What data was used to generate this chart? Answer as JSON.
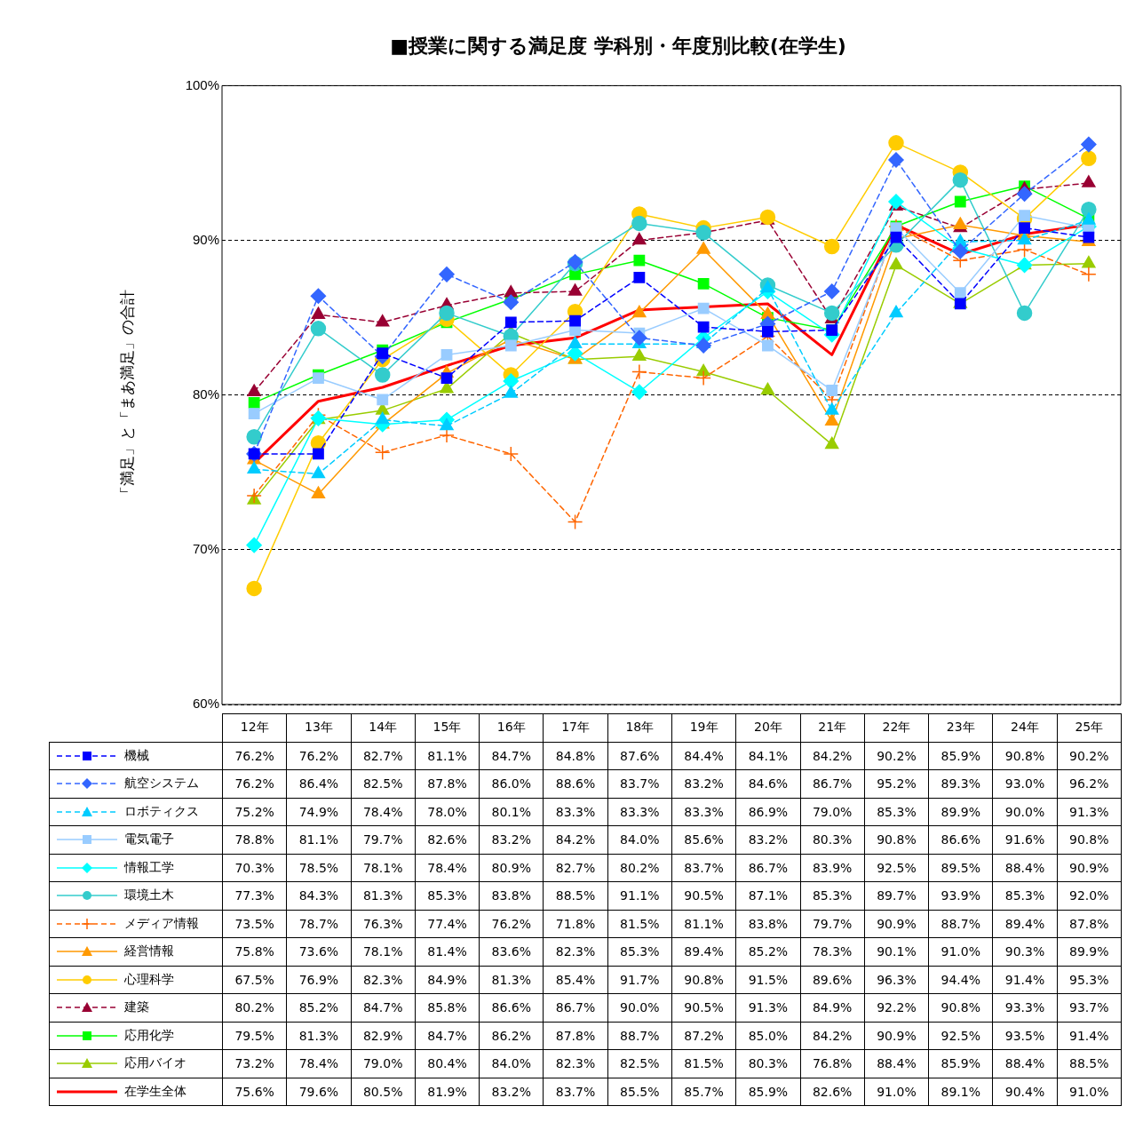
{
  "chart_data": {
    "type": "line",
    "title": "■授業に関する満足度 学科別・年度別比較(在学生)",
    "ylabel": "「満足」と「まあ満足」の合計",
    "categories": [
      "12年",
      "13年",
      "14年",
      "15年",
      "16年",
      "17年",
      "18年",
      "19年",
      "20年",
      "21年",
      "22年",
      "23年",
      "24年",
      "25年"
    ],
    "ylim": [
      60,
      100
    ],
    "yticks": [
      {
        "value": 60,
        "label": "60%"
      },
      {
        "value": 70,
        "label": "70%"
      },
      {
        "value": 80,
        "label": "80%"
      },
      {
        "value": 90,
        "label": "90%"
      },
      {
        "value": 100,
        "label": "100%"
      }
    ],
    "grid": "y",
    "legend": "bottom",
    "series": [
      {
        "name": "機械",
        "color": "#0000ff",
        "marker": "square",
        "line_style": "dashed",
        "values": [
          76.2,
          76.2,
          82.7,
          81.1,
          84.7,
          84.8,
          87.6,
          84.4,
          84.1,
          84.2,
          90.2,
          85.9,
          90.8,
          90.2
        ],
        "value_labels": [
          "76.2%",
          "76.2%",
          "82.7%",
          "81.1%",
          "84.7%",
          "84.8%",
          "87.6%",
          "84.4%",
          "84.1%",
          "84.2%",
          "90.2%",
          "85.9%",
          "90.8%",
          "90.2%"
        ]
      },
      {
        "name": "航空システム",
        "color": "#3366ff",
        "marker": "diamond",
        "line_style": "dashed",
        "values": [
          76.2,
          86.4,
          82.5,
          87.8,
          86.0,
          88.6,
          83.7,
          83.2,
          84.6,
          86.7,
          95.2,
          89.3,
          93.0,
          96.2
        ],
        "value_labels": [
          "76.2%",
          "86.4%",
          "82.5%",
          "87.8%",
          "86.0%",
          "88.6%",
          "83.7%",
          "83.2%",
          "84.6%",
          "86.7%",
          "95.2%",
          "89.3%",
          "93.0%",
          "96.2%"
        ]
      },
      {
        "name": "ロボティクス",
        "color": "#00ccff",
        "marker": "triangle",
        "line_style": "dashed",
        "values": [
          75.2,
          74.9,
          78.4,
          78.0,
          80.1,
          83.3,
          83.3,
          83.3,
          86.9,
          79.0,
          85.3,
          89.9,
          90.0,
          91.3
        ],
        "value_labels": [
          "75.2%",
          "74.9%",
          "78.4%",
          "78.0%",
          "80.1%",
          "83.3%",
          "83.3%",
          "83.3%",
          "86.9%",
          "79.0%",
          "85.3%",
          "89.9%",
          "90.0%",
          "91.3%"
        ]
      },
      {
        "name": "電気電子",
        "color": "#99ccff",
        "marker": "square",
        "line_style": "solid",
        "values": [
          78.8,
          81.1,
          79.7,
          82.6,
          83.2,
          84.2,
          84.0,
          85.6,
          83.2,
          80.3,
          90.8,
          86.6,
          91.6,
          90.8
        ],
        "value_labels": [
          "78.8%",
          "81.1%",
          "79.7%",
          "82.6%",
          "83.2%",
          "84.2%",
          "84.0%",
          "85.6%",
          "83.2%",
          "80.3%",
          "90.8%",
          "86.6%",
          "91.6%",
          "90.8%"
        ]
      },
      {
        "name": "情報工学",
        "color": "#00ffff",
        "marker": "diamond",
        "line_style": "solid",
        "values": [
          70.3,
          78.5,
          78.1,
          78.4,
          80.9,
          82.7,
          80.2,
          83.7,
          86.7,
          83.9,
          92.5,
          89.5,
          88.4,
          90.9
        ],
        "value_labels": [
          "70.3%",
          "78.5%",
          "78.1%",
          "78.4%",
          "80.9%",
          "82.7%",
          "80.2%",
          "83.7%",
          "86.7%",
          "83.9%",
          "92.5%",
          "89.5%",
          "88.4%",
          "90.9%"
        ]
      },
      {
        "name": "環境土木",
        "color": "#33cccc",
        "marker": "circle",
        "line_style": "solid",
        "values": [
          77.3,
          84.3,
          81.3,
          85.3,
          83.8,
          88.5,
          91.1,
          90.5,
          87.1,
          85.3,
          89.7,
          93.9,
          85.3,
          92.0
        ],
        "value_labels": [
          "77.3%",
          "84.3%",
          "81.3%",
          "85.3%",
          "83.8%",
          "88.5%",
          "91.1%",
          "90.5%",
          "87.1%",
          "85.3%",
          "89.7%",
          "93.9%",
          "85.3%",
          "92.0%"
        ]
      },
      {
        "name": "メディア情報",
        "color": "#ff6600",
        "marker": "cross",
        "line_style": "dashed",
        "values": [
          73.5,
          78.7,
          76.3,
          77.4,
          76.2,
          71.8,
          81.5,
          81.1,
          83.8,
          79.7,
          90.9,
          88.7,
          89.4,
          87.8
        ],
        "value_labels": [
          "73.5%",
          "78.7%",
          "76.3%",
          "77.4%",
          "76.2%",
          "71.8%",
          "81.5%",
          "81.1%",
          "83.8%",
          "79.7%",
          "90.9%",
          "88.7%",
          "89.4%",
          "87.8%"
        ]
      },
      {
        "name": "経営情報",
        "color": "#ff9900",
        "marker": "triangle",
        "line_style": "solid",
        "values": [
          75.8,
          73.6,
          78.1,
          81.4,
          83.6,
          82.3,
          85.3,
          89.4,
          85.2,
          78.3,
          90.1,
          91.0,
          90.3,
          89.9
        ],
        "value_labels": [
          "75.8%",
          "73.6%",
          "78.1%",
          "81.4%",
          "83.6%",
          "82.3%",
          "85.3%",
          "89.4%",
          "85.2%",
          "78.3%",
          "90.1%",
          "91.0%",
          "90.3%",
          "89.9%"
        ]
      },
      {
        "name": "心理科学",
        "color": "#ffcc00",
        "marker": "circle",
        "line_style": "solid",
        "values": [
          67.5,
          76.9,
          82.3,
          84.9,
          81.3,
          85.4,
          91.7,
          90.8,
          91.5,
          89.6,
          96.3,
          94.4,
          91.4,
          95.3
        ],
        "value_labels": [
          "67.5%",
          "76.9%",
          "82.3%",
          "84.9%",
          "81.3%",
          "85.4%",
          "91.7%",
          "90.8%",
          "91.5%",
          "89.6%",
          "96.3%",
          "94.4%",
          "91.4%",
          "95.3%"
        ]
      },
      {
        "name": "建築",
        "color": "#990033",
        "marker": "triangle",
        "line_style": "dashed",
        "values": [
          80.2,
          85.2,
          84.7,
          85.8,
          86.6,
          86.7,
          90.0,
          90.5,
          91.3,
          84.9,
          92.2,
          90.8,
          93.3,
          93.7
        ],
        "value_labels": [
          "80.2%",
          "85.2%",
          "84.7%",
          "85.8%",
          "86.6%",
          "86.7%",
          "90.0%",
          "90.5%",
          "91.3%",
          "84.9%",
          "92.2%",
          "90.8%",
          "93.3%",
          "93.7%"
        ]
      },
      {
        "name": "応用化学",
        "color": "#00ff00",
        "marker": "square",
        "line_style": "solid",
        "values": [
          79.5,
          81.3,
          82.9,
          84.7,
          86.2,
          87.8,
          88.7,
          87.2,
          85.0,
          84.2,
          90.9,
          92.5,
          93.5,
          91.4
        ],
        "value_labels": [
          "79.5%",
          "81.3%",
          "82.9%",
          "84.7%",
          "86.2%",
          "87.8%",
          "88.7%",
          "87.2%",
          "85.0%",
          "84.2%",
          "90.9%",
          "92.5%",
          "93.5%",
          "91.4%"
        ]
      },
      {
        "name": "応用バイオ",
        "color": "#99cc00",
        "marker": "triangle",
        "line_style": "solid",
        "values": [
          73.2,
          78.4,
          79.0,
          80.4,
          84.0,
          82.3,
          82.5,
          81.5,
          80.3,
          76.8,
          88.4,
          85.9,
          88.4,
          88.5
        ],
        "value_labels": [
          "73.2%",
          "78.4%",
          "79.0%",
          "80.4%",
          "84.0%",
          "82.3%",
          "82.5%",
          "81.5%",
          "80.3%",
          "76.8%",
          "88.4%",
          "85.9%",
          "88.4%",
          "88.5%"
        ]
      },
      {
        "name": "在学生全体",
        "color": "#ff0000",
        "marker": "none",
        "line_style": "solid",
        "values": [
          75.6,
          79.6,
          80.5,
          81.9,
          83.2,
          83.7,
          85.5,
          85.7,
          85.9,
          82.6,
          91.0,
          89.1,
          90.4,
          91.0
        ],
        "value_labels": [
          "75.6%",
          "79.6%",
          "80.5%",
          "81.9%",
          "83.2%",
          "83.7%",
          "85.5%",
          "85.7%",
          "85.9%",
          "82.6%",
          "91.0%",
          "89.1%",
          "90.4%",
          "91.0%"
        ]
      }
    ]
  }
}
